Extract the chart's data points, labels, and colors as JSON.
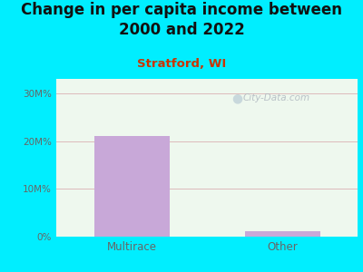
{
  "title": "Change in per capita income between\n2000 and 2022",
  "subtitle": "Stratford, WI",
  "categories": [
    "Multirace",
    "Other"
  ],
  "values": [
    21,
    1.2
  ],
  "bar_color": "#c8a8d8",
  "title_fontsize": 12,
  "subtitle_fontsize": 9.5,
  "subtitle_color": "#cc3300",
  "title_color": "#111111",
  "tick_label_color": "#666666",
  "yticks": [
    0,
    10,
    20,
    30
  ],
  "ytick_labels": [
    "0%",
    "10M%",
    "20M%",
    "30M%"
  ],
  "ylim": [
    0,
    33
  ],
  "bg_outer": "#00eeff",
  "watermark": "City-Data.com",
  "grid_color": "#ddbbbb",
  "bar_width": 0.5
}
